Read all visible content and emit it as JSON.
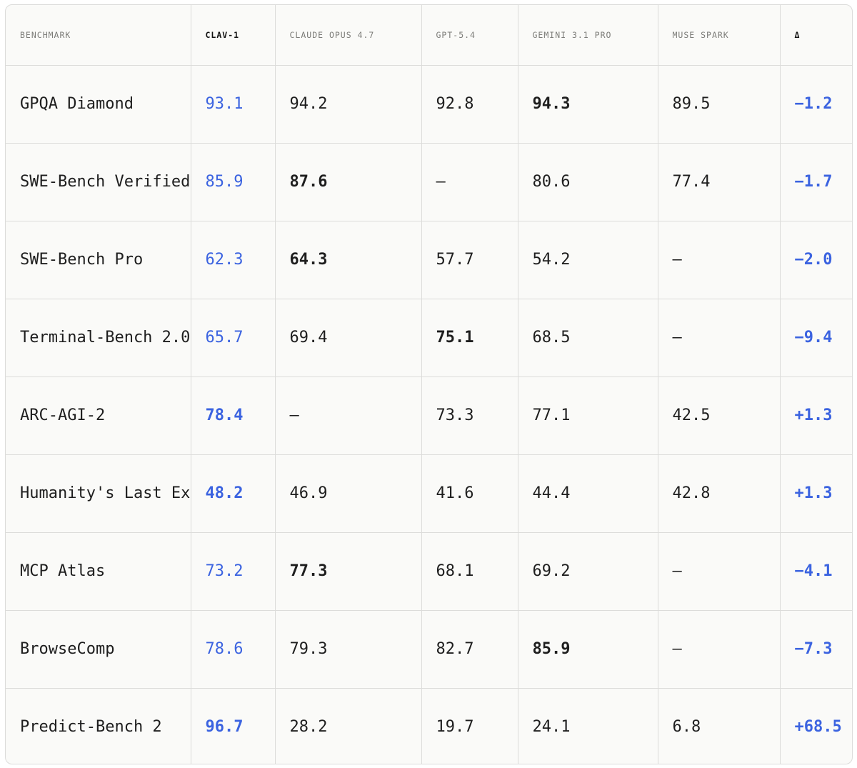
{
  "colors": {
    "accent": "#3b63e0",
    "text": "#1e1e1e",
    "header_text": "#7c7c78",
    "border": "#dcdcda",
    "background": "#fafaf8"
  },
  "columns": [
    "BENCHMARK",
    "CLAV-1",
    "CLAUDE OPUS 4.7",
    "GPT-5.4",
    "GEMINI 3.1 PRO",
    "MUSE SPARK",
    "Δ"
  ],
  "rows": [
    {
      "benchmark": "GPQA Diamond",
      "clav1": "93.1",
      "claude": "94.2",
      "gpt": "92.8",
      "gemini": "94.3",
      "muse": "89.5",
      "delta": "−1.2"
    },
    {
      "benchmark": "SWE-Bench Verified",
      "clav1": "85.9",
      "claude": "87.6",
      "gpt": "–",
      "gemini": "80.6",
      "muse": "77.4",
      "delta": "−1.7"
    },
    {
      "benchmark": "SWE-Bench Pro",
      "clav1": "62.3",
      "claude": "64.3",
      "gpt": "57.7",
      "gemini": "54.2",
      "muse": "–",
      "delta": "−2.0"
    },
    {
      "benchmark": "Terminal-Bench 2.0",
      "clav1": "65.7",
      "claude": "69.4",
      "gpt": "75.1",
      "gemini": "68.5",
      "muse": "–",
      "delta": "−9.4"
    },
    {
      "benchmark": "ARC-AGI-2",
      "clav1": "78.4",
      "claude": "–",
      "gpt": "73.3",
      "gemini": "77.1",
      "muse": "42.5",
      "delta": "+1.3"
    },
    {
      "benchmark": "Humanity's Last Exam",
      "clav1": "48.2",
      "claude": "46.9",
      "gpt": "41.6",
      "gemini": "44.4",
      "muse": "42.8",
      "delta": "+1.3"
    },
    {
      "benchmark": "MCP Atlas",
      "clav1": "73.2",
      "claude": "77.3",
      "gpt": "68.1",
      "gemini": "69.2",
      "muse": "–",
      "delta": "−4.1"
    },
    {
      "benchmark": "BrowseComp",
      "clav1": "78.6",
      "claude": "79.3",
      "gpt": "82.7",
      "gemini": "85.9",
      "muse": "–",
      "delta": "−7.3"
    },
    {
      "benchmark": "Predict-Bench 2",
      "clav1": "96.7",
      "claude": "28.2",
      "gpt": "19.7",
      "gemini": "24.1",
      "muse": "6.8",
      "delta": "+68.5"
    }
  ]
}
